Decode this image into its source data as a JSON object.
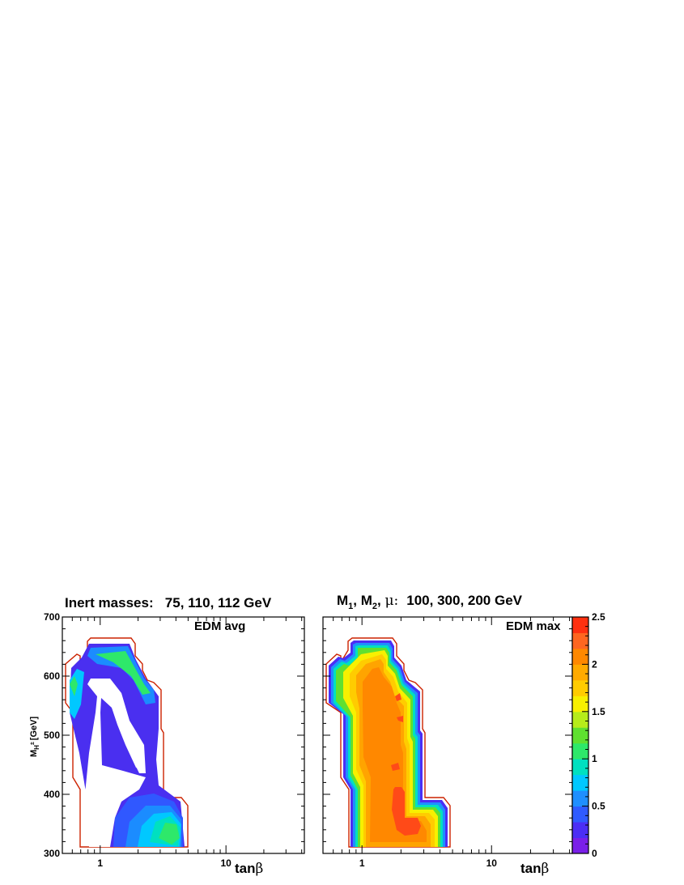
{
  "header": {
    "left_title": "Inert masses:   75, 110, 112 GeV",
    "right_title_prefix": "M",
    "right_title_sub1": "1",
    "right_title_sub2": "2",
    "right_title_mu": "μ:",
    "right_title_values": "100, 300, 200 GeV"
  },
  "colors": {
    "boundary": "#cc2200",
    "palette": [
      "#7a1fe8",
      "#4b2ef5",
      "#2f5bff",
      "#1f8fff",
      "#00c8ff",
      "#00e0c0",
      "#2ee86a",
      "#5fe030",
      "#b6ec1a",
      "#f7f000",
      "#ffcc00",
      "#ffaa00",
      "#ff8800",
      "#ff6620",
      "#ff3010"
    ]
  },
  "chart_data": [
    {
      "type": "heatmap",
      "panel": "left",
      "annotation": "EDM avg",
      "xlabel": "tanβ",
      "xlabel_prefix": "tan",
      "xlabel_symbol": "β",
      "ylabel": "M",
      "ylabel_sub": "H",
      "ylabel_sup": "±",
      "ylabel_unit": "[GeV]",
      "x_scale": "log",
      "xlim": [
        0.5,
        42
      ],
      "ylim": [
        300,
        700
      ],
      "x_tick_labels": [
        "1",
        "10"
      ],
      "y_tick_labels": [
        "300",
        "400",
        "500",
        "600",
        "700"
      ]
    },
    {
      "type": "heatmap",
      "panel": "right",
      "annotation": "EDM max",
      "xlabel": "tanβ",
      "xlabel_prefix": "tan",
      "xlabel_symbol": "β",
      "x_scale": "log",
      "xlim": [
        0.5,
        42
      ],
      "ylim": [
        300,
        700
      ],
      "x_tick_labels": [
        "1",
        "10"
      ],
      "colorbar": {
        "range": [
          0,
          2.5
        ],
        "tick_labels": [
          "0",
          "0.5",
          "1",
          "1.5",
          "2",
          "2.5"
        ]
      }
    }
  ]
}
